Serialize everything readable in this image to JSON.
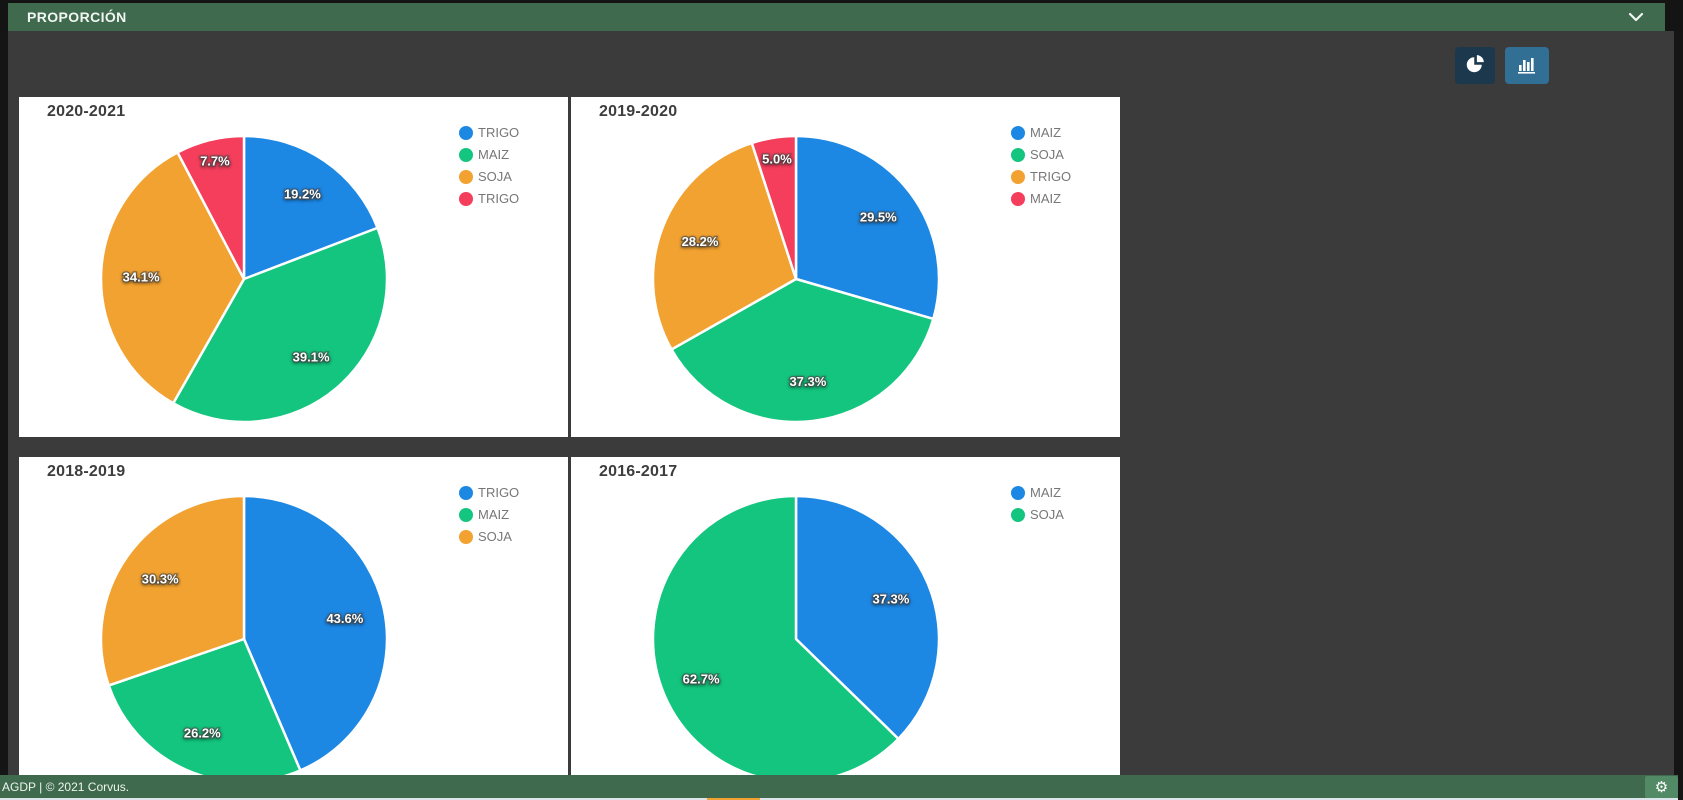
{
  "header": {
    "title": "PROPORCIÓN"
  },
  "toolbar": {
    "pie_button_icon": "pie-chart-icon",
    "bar_button_icon": "bar-chart-icon"
  },
  "footer": {
    "text": "AGDP | © 2021 Corvus.",
    "gear_icon": "gear-icon"
  },
  "colors": {
    "blue": "#1d87e4",
    "green": "#13c57e",
    "orange": "#f2a230",
    "red": "#f43e5c",
    "header_green": "#3f6a4e",
    "button_dark": "#1c384c",
    "button_blue": "#316f95",
    "gear_button_green": "#538a66",
    "content_bg": "#3b3b3b",
    "panel_bg": "#ffffff"
  },
  "chart_data": [
    {
      "type": "pie",
      "title": "2020-2021",
      "labels_format": "percent",
      "start_angle": "top",
      "direction": "clockwise",
      "legend_position": "right",
      "series": [
        {
          "label": "TRIGO",
          "value": 19.2,
          "color": "blue"
        },
        {
          "label": "MAIZ",
          "value": 39.1,
          "color": "green"
        },
        {
          "label": "SOJA",
          "value": 34.1,
          "color": "orange"
        },
        {
          "label": "TRIGO",
          "value": 7.7,
          "color": "red"
        }
      ]
    },
    {
      "type": "pie",
      "title": "2019-2020",
      "labels_format": "percent",
      "start_angle": "top",
      "direction": "clockwise",
      "legend_position": "right",
      "series": [
        {
          "label": "MAIZ",
          "value": 29.5,
          "color": "blue"
        },
        {
          "label": "SOJA",
          "value": 37.3,
          "color": "green"
        },
        {
          "label": "TRIGO",
          "value": 28.2,
          "color": "orange"
        },
        {
          "label": "MAIZ",
          "value": 5.0,
          "color": "red"
        }
      ]
    },
    {
      "type": "pie",
      "title": "2018-2019",
      "labels_format": "percent",
      "start_angle": "top",
      "direction": "clockwise",
      "legend_position": "right",
      "series": [
        {
          "label": "TRIGO",
          "value": 43.6,
          "color": "blue"
        },
        {
          "label": "MAIZ",
          "value": 26.2,
          "color": "green"
        },
        {
          "label": "SOJA",
          "value": 30.3,
          "color": "orange"
        }
      ]
    },
    {
      "type": "pie",
      "title": "2016-2017",
      "labels_format": "percent",
      "start_angle": "top",
      "direction": "clockwise",
      "legend_position": "right",
      "series": [
        {
          "label": "MAIZ",
          "value": 37.3,
          "color": "blue"
        },
        {
          "label": "SOJA",
          "value": 62.7,
          "color": "green"
        }
      ]
    }
  ]
}
